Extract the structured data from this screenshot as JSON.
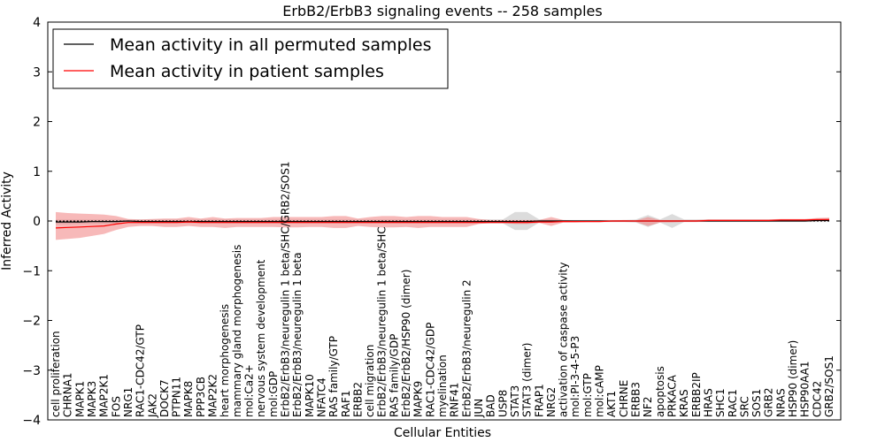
{
  "chart_data": {
    "type": "line",
    "title": "ErbB2/ErbB3 signaling events -- 258 samples",
    "xlabel": "Cellular Entities",
    "ylabel": "Inferred Activity",
    "ylim": [
      -4,
      4
    ],
    "yticks": [
      -4,
      -3,
      -2,
      -1,
      0,
      1,
      2,
      3,
      4
    ],
    "ytick_labels": [
      "−4",
      "−3",
      "−2",
      "−1",
      "0",
      "1",
      "2",
      "3",
      "4"
    ],
    "legend_position": "top-left",
    "colors": {
      "permuted": "#000000",
      "patient": "#ff0000",
      "patient_band": "#f08080",
      "permuted_band": "#c0c0c0"
    },
    "categories": [
      "cell proliferation",
      "CHRNA1",
      "MAPK1",
      "MAPK3",
      "MAP2K1",
      "FOS",
      "NRG1",
      "RAC1-CDC42/GTP",
      "JAK2",
      "DOCK7",
      "PTPN11",
      "MAPK8",
      "PPP3CB",
      "MAP2K2",
      "heart morphogenesis",
      "mammary gland morphogenesis",
      "mol:Ca2+",
      "nervous system development",
      "mol:GDP",
      "ErbB2/ErbB3/neuregulin 1 beta/SHC/GRB2/SOS1",
      "ErbB2/ErbB3/neuregulin 1 beta",
      "MAPK10",
      "NFATC4",
      "RAS family/GTP",
      "RAF1",
      "ERBB2",
      "cell migration",
      "ErbB2/ErbB3/neuregulin 1 beta/SHC",
      "RAS family/GDP",
      "ErbB2/ErbB2/HSP90 (dimer)",
      "MAPK9",
      "RAC1-CDC42/GDP",
      "myelination",
      "RNF41",
      "ErbB2/ErbB3/neuregulin 2",
      "JUN",
      "BAD",
      "USP8",
      "STAT3",
      "STAT3 (dimer)",
      "FRAP1",
      "NRG2",
      "activation of caspase activity",
      "mol:PI-3-4-5-P3",
      "mol:GTP",
      "mol:cAMP",
      "AKT1",
      "CHRNE",
      "ERBB3",
      "NF2",
      "apoptosis",
      "PRKACA",
      "KRAS",
      "ERBB2IP",
      "HRAS",
      "SHC1",
      "RAC1",
      "SRC",
      "SOS1",
      "GRB2",
      "NRAS",
      "HSP90 (dimer)",
      "HSP90AA1",
      "CDC42",
      "GRB2/SOS1"
    ],
    "series": [
      {
        "name": "Mean activity in all permuted samples",
        "values": [
          -0.02,
          -0.02,
          -0.02,
          -0.01,
          -0.01,
          -0.01,
          0.0,
          -0.01,
          -0.01,
          -0.01,
          -0.01,
          -0.01,
          -0.01,
          -0.01,
          -0.01,
          -0.01,
          -0.01,
          -0.01,
          -0.01,
          -0.01,
          -0.01,
          -0.01,
          -0.01,
          -0.01,
          -0.01,
          -0.01,
          -0.01,
          -0.01,
          -0.01,
          -0.01,
          -0.01,
          -0.01,
          -0.01,
          -0.01,
          -0.01,
          -0.01,
          -0.01,
          -0.01,
          -0.01,
          -0.01,
          0.0,
          0.0,
          0.0,
          0.0,
          0.0,
          0.0,
          0.0,
          0.0,
          0.0,
          0.0,
          0.0,
          0.0,
          0.0,
          0.0,
          0.0,
          0.0,
          0.0,
          0.0,
          0.0,
          0.0,
          0.0,
          0.0,
          0.0,
          0.01,
          0.01
        ],
        "lower": [
          -0.07,
          -0.07,
          -0.06,
          -0.06,
          -0.06,
          -0.05,
          -0.05,
          -0.05,
          -0.05,
          -0.05,
          -0.05,
          -0.05,
          -0.05,
          -0.05,
          -0.05,
          -0.05,
          -0.05,
          -0.05,
          -0.05,
          -0.05,
          -0.05,
          -0.05,
          -0.05,
          -0.05,
          -0.05,
          -0.05,
          -0.05,
          -0.05,
          -0.05,
          -0.05,
          -0.05,
          -0.05,
          -0.05,
          -0.05,
          -0.05,
          -0.05,
          -0.05,
          -0.05,
          -0.18,
          -0.18,
          -0.03,
          -0.03,
          -0.02,
          -0.02,
          -0.02,
          -0.02,
          -0.02,
          -0.02,
          -0.03,
          -0.12,
          -0.03,
          -0.14,
          -0.02,
          -0.02,
          -0.02,
          -0.02,
          -0.02,
          -0.02,
          -0.02,
          -0.02,
          -0.02,
          -0.02,
          -0.02,
          -0.02,
          -0.02
        ],
        "upper": [
          0.03,
          0.03,
          0.03,
          0.03,
          0.03,
          0.03,
          0.03,
          0.03,
          0.03,
          0.03,
          0.03,
          0.03,
          0.03,
          0.03,
          0.03,
          0.03,
          0.03,
          0.03,
          0.03,
          0.03,
          0.03,
          0.03,
          0.03,
          0.03,
          0.03,
          0.03,
          0.03,
          0.03,
          0.03,
          0.03,
          0.03,
          0.03,
          0.03,
          0.03,
          0.03,
          0.03,
          0.03,
          0.03,
          0.18,
          0.18,
          0.03,
          0.03,
          0.02,
          0.02,
          0.02,
          0.02,
          0.02,
          0.02,
          0.03,
          0.12,
          0.03,
          0.14,
          0.03,
          0.03,
          0.03,
          0.03,
          0.03,
          0.03,
          0.03,
          0.03,
          0.03,
          0.03,
          0.03,
          0.04,
          0.05
        ]
      },
      {
        "name": "Mean activity in patient samples",
        "values": [
          -0.14,
          -0.13,
          -0.12,
          -0.11,
          -0.1,
          -0.06,
          -0.03,
          -0.03,
          -0.03,
          -0.03,
          -0.03,
          -0.02,
          -0.03,
          -0.03,
          -0.03,
          -0.03,
          -0.03,
          -0.03,
          -0.03,
          -0.03,
          -0.03,
          -0.03,
          -0.03,
          -0.03,
          -0.03,
          -0.03,
          -0.03,
          -0.03,
          -0.03,
          -0.03,
          -0.03,
          -0.03,
          -0.03,
          -0.03,
          -0.03,
          -0.03,
          -0.03,
          -0.03,
          -0.03,
          -0.03,
          -0.02,
          -0.02,
          -0.01,
          -0.01,
          -0.01,
          -0.01,
          0.0,
          0.0,
          0.0,
          0.0,
          0.0,
          0.0,
          0.0,
          0.0,
          0.01,
          0.01,
          0.01,
          0.01,
          0.01,
          0.01,
          0.02,
          0.02,
          0.02,
          0.03,
          0.03
        ],
        "lower": [
          -0.38,
          -0.36,
          -0.34,
          -0.3,
          -0.26,
          -0.18,
          -0.12,
          -0.1,
          -0.1,
          -0.12,
          -0.12,
          -0.1,
          -0.12,
          -0.12,
          -0.14,
          -0.12,
          -0.12,
          -0.12,
          -0.12,
          -0.13,
          -0.13,
          -0.12,
          -0.12,
          -0.14,
          -0.14,
          -0.1,
          -0.12,
          -0.13,
          -0.13,
          -0.12,
          -0.14,
          -0.12,
          -0.12,
          -0.12,
          -0.12,
          -0.06,
          -0.04,
          -0.04,
          -0.06,
          -0.06,
          -0.04,
          -0.1,
          -0.03,
          -0.03,
          -0.02,
          -0.02,
          -0.02,
          -0.02,
          -0.02,
          -0.1,
          -0.03,
          -0.03,
          -0.02,
          -0.02,
          -0.01,
          -0.01,
          -0.01,
          -0.01,
          -0.01,
          -0.01,
          0.0,
          0.0,
          0.0,
          0.0,
          0.0
        ],
        "upper": [
          0.18,
          0.16,
          0.15,
          0.14,
          0.13,
          0.1,
          0.04,
          0.03,
          0.04,
          0.05,
          0.05,
          0.08,
          0.05,
          0.08,
          0.05,
          0.06,
          0.06,
          0.06,
          0.08,
          0.08,
          0.08,
          0.08,
          0.08,
          0.1,
          0.1,
          0.05,
          0.08,
          0.1,
          0.1,
          0.08,
          0.1,
          0.1,
          0.08,
          0.08,
          0.08,
          0.04,
          0.02,
          0.02,
          0.02,
          0.02,
          0.02,
          0.08,
          0.02,
          0.01,
          0.01,
          0.01,
          0.01,
          0.02,
          0.01,
          0.08,
          0.02,
          0.02,
          0.02,
          0.02,
          0.03,
          0.03,
          0.03,
          0.03,
          0.03,
          0.03,
          0.04,
          0.04,
          0.04,
          0.06,
          0.07
        ]
      }
    ]
  }
}
